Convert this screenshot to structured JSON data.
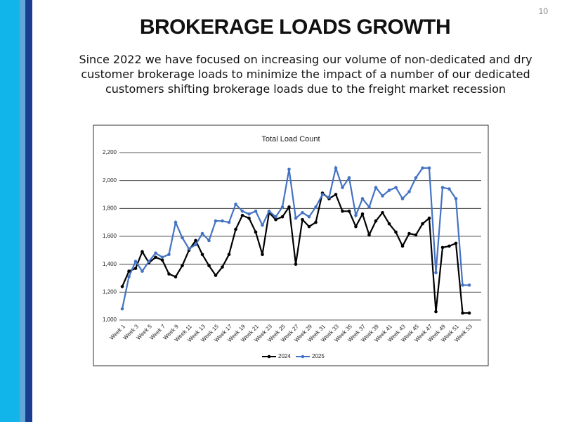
{
  "page_number": "10",
  "title": "BROKERAGE LOADS GROWTH",
  "subtitle": "Since 2022 we have focused on increasing our volume of non-dedicated and dry customer brokerage loads to minimize the impact of a number of our dedicated customers shifting brokerage loads due to the freight market recession",
  "chart_data": {
    "type": "line",
    "title": "Total Load Count",
    "categories": [
      "Week 1",
      null,
      "Week 3",
      null,
      "Week 5",
      null,
      "Week 7",
      null,
      "Week 9",
      null,
      "Week 11",
      null,
      "Week 13",
      null,
      "Week 15",
      null,
      "Week 17",
      null,
      "Week 19",
      null,
      "Week 21",
      null,
      "Week 23",
      null,
      "Week 25",
      null,
      "Week 27",
      null,
      "Week 29",
      null,
      "Week 31",
      null,
      "Week 33",
      null,
      "Week 35",
      null,
      "Week 37",
      null,
      "Week 39",
      null,
      "Week 41",
      null,
      "Week 43",
      null,
      "Week 45",
      null,
      "Week 47",
      null,
      "Week 49",
      null,
      "Week 51",
      null,
      "Week 53"
    ],
    "series": [
      {
        "name": "2024",
        "color": "#000000",
        "values": [
          1240,
          1350,
          1370,
          1490,
          1410,
          1450,
          1430,
          1330,
          1310,
          1390,
          1500,
          1570,
          1470,
          1390,
          1320,
          1380,
          1470,
          1650,
          1750,
          1730,
          1630,
          1470,
          1770,
          1720,
          1740,
          1810,
          1400,
          1720,
          1670,
          1700,
          1910,
          1870,
          1900,
          1780,
          1780,
          1670,
          1760,
          1610,
          1710,
          1770,
          1690,
          1630,
          1530,
          1620,
          1610,
          1690,
          1730,
          1060,
          1520,
          1530,
          1550,
          1050,
          1050
        ]
      },
      {
        "name": "2025",
        "color": "#4472c4",
        "values": [
          1080,
          1310,
          1420,
          1350,
          1420,
          1480,
          1450,
          1470,
          1700,
          1590,
          1510,
          1540,
          1620,
          1570,
          1710,
          1710,
          1700,
          1830,
          1780,
          1760,
          1780,
          1680,
          1780,
          1740,
          1810,
          2080,
          1730,
          1770,
          1740,
          1810,
          1900,
          1880,
          2090,
          1950,
          2020,
          1750,
          1870,
          1810,
          1950,
          1890,
          1930,
          1950,
          1870,
          1920,
          2020,
          2090,
          2090,
          1340,
          1950,
          1940,
          1870,
          1250,
          1250
        ]
      }
    ],
    "ylim": [
      1000,
      2200
    ],
    "yticks": [
      {
        "value": 1000,
        "label": "1,000"
      },
      {
        "value": 1200,
        "label": "1,200"
      },
      {
        "value": 1400,
        "label": "1,400"
      },
      {
        "value": 1600,
        "label": "1,600"
      },
      {
        "value": 1800,
        "label": "1,800"
      },
      {
        "value": 2000,
        "label": "2,000"
      },
      {
        "value": 2200,
        "label": "2,200"
      }
    ],
    "grid": true,
    "legend": "bottom"
  }
}
